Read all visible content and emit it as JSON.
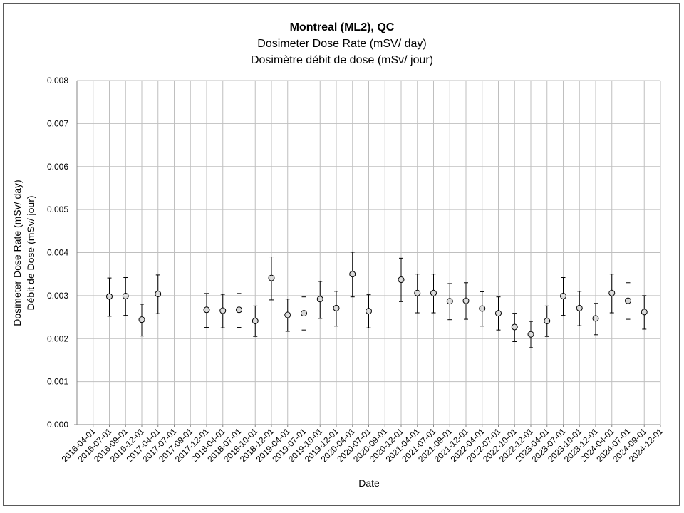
{
  "chart_data": {
    "type": "scatter",
    "title": "Montreal (ML2), QC",
    "subtitle": [
      "Dosimeter Dose Rate (mSV/ day)",
      "Dosimètre débit de dose (mSv/ jour)"
    ],
    "xlabel": "Date",
    "ylabel": [
      "Dosimeter Dose Rate (mSv/ day)",
      "Débit de Dose (mSv/ jour)"
    ],
    "ylim": [
      0,
      0.008
    ],
    "y_ticks": [
      "0.000",
      "0.001",
      "0.002",
      "0.003",
      "0.004",
      "0.005",
      "0.006",
      "0.007",
      "0.008"
    ],
    "x_categories": [
      "2016-04-01",
      "2016-07-01",
      "2016-09-01",
      "2016-12-01",
      "2017-04-01",
      "2017-07-01",
      "2017-09-01",
      "2017-12-01",
      "2018-04-01",
      "2018-07-01",
      "2018-10-01",
      "2018-12-01",
      "2019-04-01",
      "2019-07-01",
      "2019-10-01",
      "2019-12-01",
      "2020-04-01",
      "2020-07-01",
      "2020-09-01",
      "2020-12-01",
      "2021-04-01",
      "2021-07-01",
      "2021-09-01",
      "2021-12-01",
      "2022-04-01",
      "2022-07-01",
      "2022-10-01",
      "2022-12-01",
      "2023-04-01",
      "2023-07-01",
      "2023-10-01",
      "2023-12-01",
      "2024-04-01",
      "2024-07-01",
      "2024-09-01",
      "2024-12-01"
    ],
    "grid": true,
    "points": [
      {
        "x": "2016-07-01",
        "y": 0.00298,
        "low": 0.00252,
        "high": 0.00341
      },
      {
        "x": "2016-09-01",
        "y": 0.00299,
        "low": 0.00254,
        "high": 0.00342
      },
      {
        "x": "2016-12-01",
        "y": 0.00244,
        "low": 0.00206,
        "high": 0.0028
      },
      {
        "x": "2017-04-01",
        "y": 0.00304,
        "low": 0.00258,
        "high": 0.00348
      },
      {
        "x": "2017-12-01",
        "y": 0.00267,
        "low": 0.00226,
        "high": 0.00305
      },
      {
        "x": "2018-04-01",
        "y": 0.00265,
        "low": 0.00225,
        "high": 0.00303
      },
      {
        "x": "2018-07-01",
        "y": 0.00267,
        "low": 0.00226,
        "high": 0.00305
      },
      {
        "x": "2018-10-01",
        "y": 0.00241,
        "low": 0.00205,
        "high": 0.00276
      },
      {
        "x": "2018-12-01",
        "y": 0.00341,
        "low": 0.0029,
        "high": 0.0039
      },
      {
        "x": "2019-04-01",
        "y": 0.00255,
        "low": 0.00217,
        "high": 0.00292
      },
      {
        "x": "2019-07-01",
        "y": 0.00259,
        "low": 0.0022,
        "high": 0.00297
      },
      {
        "x": "2019-10-01",
        "y": 0.00292,
        "low": 0.00247,
        "high": 0.00333
      },
      {
        "x": "2019-12-01",
        "y": 0.00271,
        "low": 0.00229,
        "high": 0.0031
      },
      {
        "x": "2020-04-01",
        "y": 0.0035,
        "low": 0.00297,
        "high": 0.00401
      },
      {
        "x": "2020-07-01",
        "y": 0.00264,
        "low": 0.00225,
        "high": 0.00302
      },
      {
        "x": "2020-12-01",
        "y": 0.00337,
        "low": 0.00286,
        "high": 0.00387
      },
      {
        "x": "2021-04-01",
        "y": 0.00306,
        "low": 0.0026,
        "high": 0.0035
      },
      {
        "x": "2021-07-01",
        "y": 0.00306,
        "low": 0.0026,
        "high": 0.0035
      },
      {
        "x": "2021-09-01",
        "y": 0.00287,
        "low": 0.00244,
        "high": 0.00328
      },
      {
        "x": "2021-12-01",
        "y": 0.00288,
        "low": 0.00245,
        "high": 0.0033
      },
      {
        "x": "2022-04-01",
        "y": 0.0027,
        "low": 0.00229,
        "high": 0.00309
      },
      {
        "x": "2022-07-01",
        "y": 0.00259,
        "low": 0.0022,
        "high": 0.00297
      },
      {
        "x": "2022-10-01",
        "y": 0.00227,
        "low": 0.00193,
        "high": 0.00259
      },
      {
        "x": "2022-12-01",
        "y": 0.0021,
        "low": 0.00179,
        "high": 0.0024
      },
      {
        "x": "2023-04-01",
        "y": 0.00241,
        "low": 0.00205,
        "high": 0.00276
      },
      {
        "x": "2023-07-01",
        "y": 0.00299,
        "low": 0.00254,
        "high": 0.00342
      },
      {
        "x": "2023-10-01",
        "y": 0.00271,
        "low": 0.0023,
        "high": 0.0031
      },
      {
        "x": "2023-12-01",
        "y": 0.00247,
        "low": 0.00209,
        "high": 0.00282
      },
      {
        "x": "2024-04-01",
        "y": 0.00306,
        "low": 0.0026,
        "high": 0.0035
      },
      {
        "x": "2024-07-01",
        "y": 0.00288,
        "low": 0.00245,
        "high": 0.0033
      },
      {
        "x": "2024-09-01",
        "y": 0.00262,
        "low": 0.00222,
        "high": 0.003
      }
    ],
    "colors": {
      "marker_fill": "#d9d9d9",
      "marker_stroke": "#000000",
      "grid": "#bfbfbf",
      "axis": "#868686",
      "frame": "#595959"
    }
  }
}
